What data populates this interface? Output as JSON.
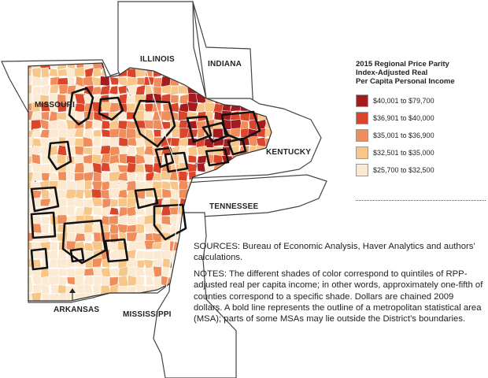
{
  "map": {
    "states": [
      {
        "id": "illinois",
        "label": "ILLINOIS"
      },
      {
        "id": "indiana",
        "label": "INDIANA"
      },
      {
        "id": "missouri",
        "label": "MISSOURI"
      },
      {
        "id": "kentucky",
        "label": "KENTUCKY"
      },
      {
        "id": "tennessee",
        "label": "TENNESSEE"
      },
      {
        "id": "arkansas",
        "label": "ARKANSAS"
      },
      {
        "id": "mississippi",
        "label": "MISSISSIPPI"
      }
    ],
    "colors": {
      "q1": "#a31b1f",
      "q2": "#d9462b",
      "q3": "#ef8e5c",
      "q4": "#f7c689",
      "q5": "#fbe9d2",
      "outline": "#111111",
      "outside": "#ffffff"
    }
  },
  "legend": {
    "title_lines": [
      "2015 Regional Price Parity",
      "Index-Adjusted Real",
      "Per Capita Personal Income"
    ],
    "items": [
      {
        "label": "$40,001 to $79,700",
        "color": "#a31b1f"
      },
      {
        "label": "$36,901 to $40,000",
        "color": "#d9462b"
      },
      {
        "label": "$35,001 to $36,900",
        "color": "#ef8e5c"
      },
      {
        "label": "$32,501 to $35,000",
        "color": "#f7c689"
      },
      {
        "label": "$25,700 to $32,500",
        "color": "#fbe9d2"
      }
    ]
  },
  "notes": {
    "sources": "SOURCES: Bureau of Economic Analysis, Haver Analytics and authors’ calculations.",
    "notes_head": "NOTES:",
    "notes_text": " The different shades of color correspond to quintiles of RPP-adjusted real per capita income; in other words, approximately one-fifth of counties correspond to a specific shade. Dollars are chained 2009 dollars. A bold line represents the outline of a metropolitan statistical area (MSA); parts of some MSAs may lie outside the District’s boundaries."
  }
}
